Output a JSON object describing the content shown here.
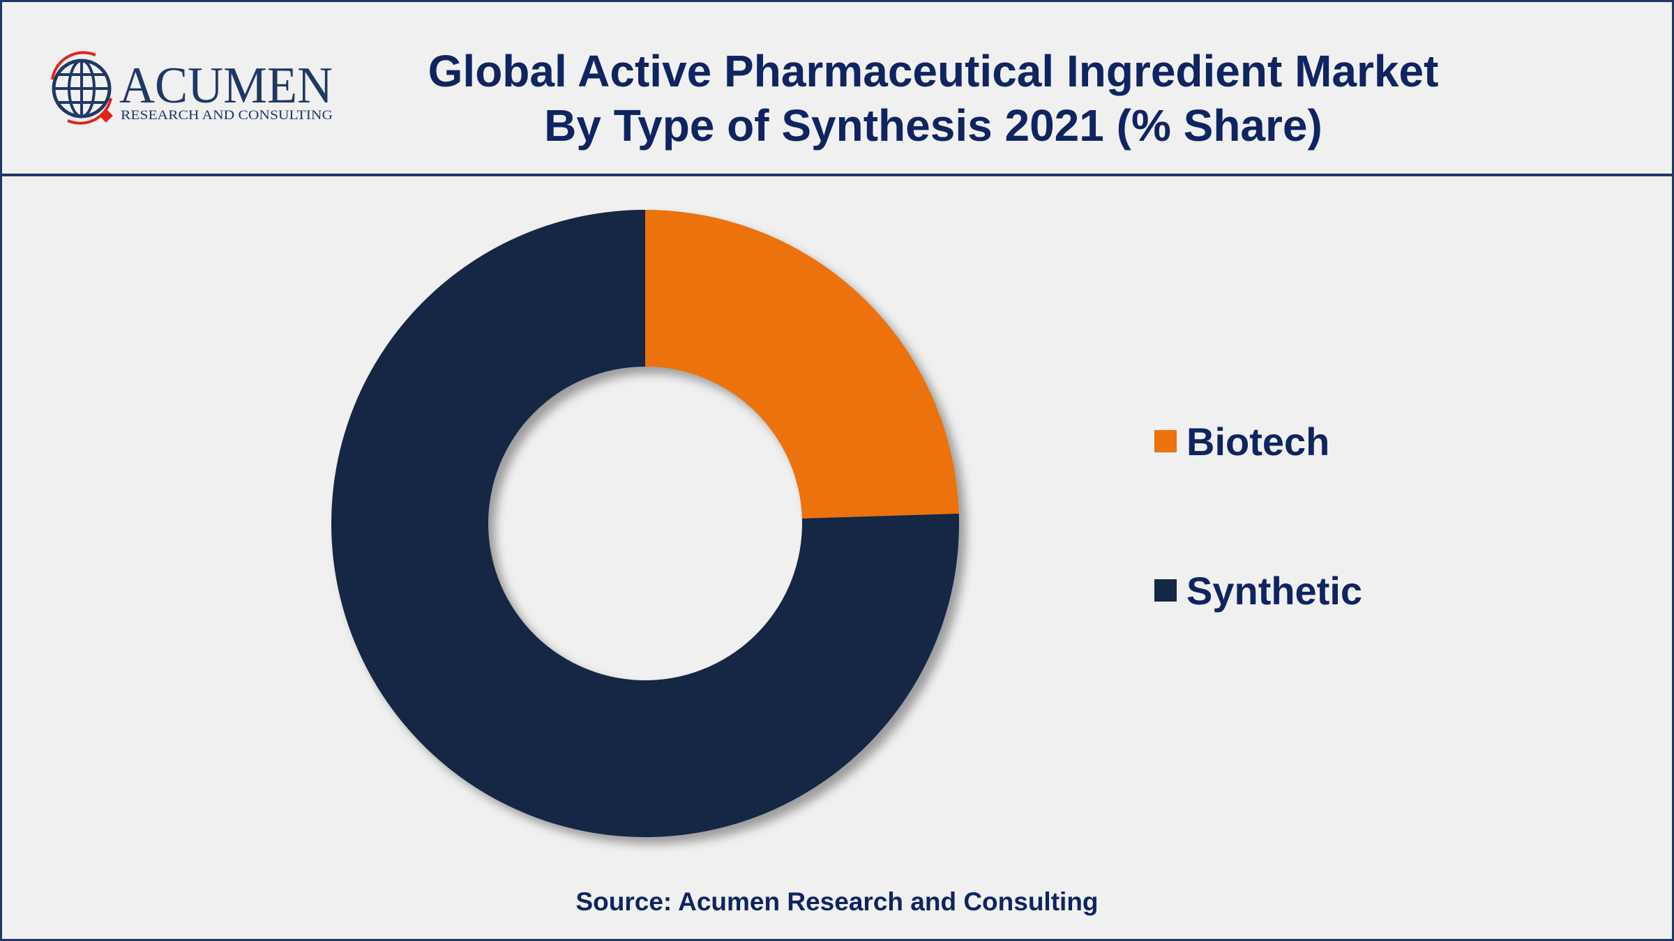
{
  "header": {
    "logo": {
      "brand": "ACUMEN",
      "tagline": "RESEARCH AND CONSULTING"
    },
    "title_line1": "Global Active Pharmaceutical Ingredient Market",
    "title_line2": "By Type of Synthesis 2021 (% Share)"
  },
  "chart_data": {
    "type": "pie",
    "donut": true,
    "categories": [
      "Biotech",
      "Synthetic"
    ],
    "values": [
      24.5,
      75.5
    ],
    "colors": [
      "#ec720e",
      "#142744"
    ],
    "legend_position": "right"
  },
  "legend": {
    "items": [
      {
        "label": "Biotech",
        "color": "#ec720e"
      },
      {
        "label": "Synthetic",
        "color": "#142744"
      }
    ]
  },
  "footer": {
    "source": "Source: Acumen Research and Consulting"
  },
  "colors": {
    "border": "#1f3864",
    "text": "#0f2460",
    "background": "#f0f0f0",
    "logo_red": "#e2231a"
  }
}
